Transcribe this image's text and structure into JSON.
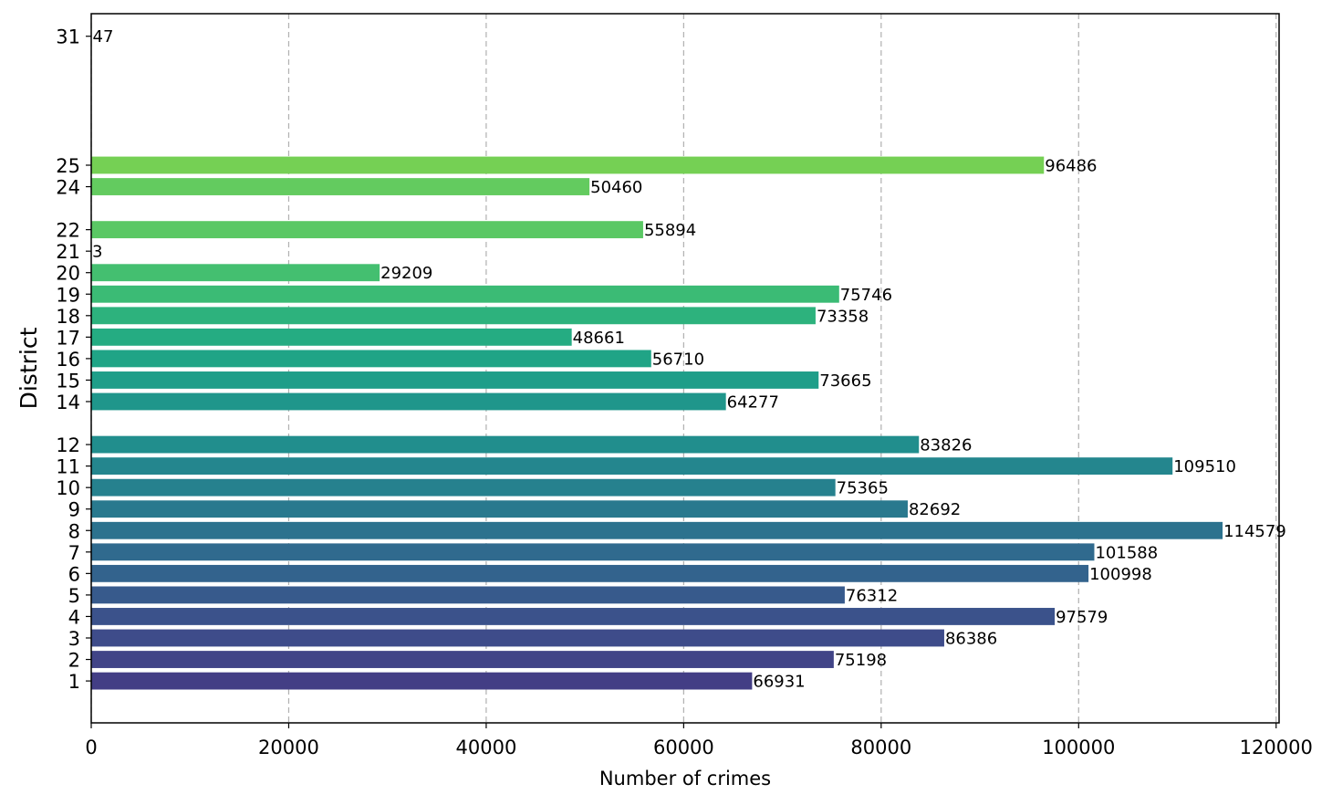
{
  "chart_data": {
    "type": "bar",
    "orientation": "horizontal",
    "xlabel": "Number of crimes",
    "ylabel": "District",
    "xlim": [
      0,
      120300
    ],
    "ylim": [
      -0.95,
      32.05
    ],
    "x_ticks": [
      0,
      20000,
      40000,
      60000,
      80000,
      100000,
      120000
    ],
    "grid": "x-dashed",
    "legend": "none",
    "categories": [
      "1",
      "2",
      "3",
      "4",
      "5",
      "6",
      "7",
      "8",
      "9",
      "10",
      "11",
      "12",
      "14",
      "15",
      "16",
      "17",
      "18",
      "19",
      "20",
      "21",
      "22",
      "24",
      "25",
      "31"
    ],
    "values": [
      66931,
      75198,
      86386,
      97579,
      76312,
      100998,
      101588,
      114579,
      82692,
      75365,
      109510,
      83826,
      64277,
      73665,
      56710,
      48661,
      73358,
      75746,
      29209,
      3,
      55894,
      50460,
      96486,
      47
    ],
    "colors": [
      "#433e85",
      "#414487",
      "#3e4c8a",
      "#3b528b",
      "#375a8c",
      "#33638d",
      "#306a8e",
      "#2c728e",
      "#29798e",
      "#26818e",
      "#24868e",
      "#218e8d",
      "#1f968b",
      "#1f9e89",
      "#20a486",
      "#25ac82",
      "#2db27d",
      "#3bbb75",
      "#44bf70",
      "#4ec36b",
      "#5ac864",
      "#63cb5f",
      "#75d054",
      "#90d743"
    ]
  }
}
